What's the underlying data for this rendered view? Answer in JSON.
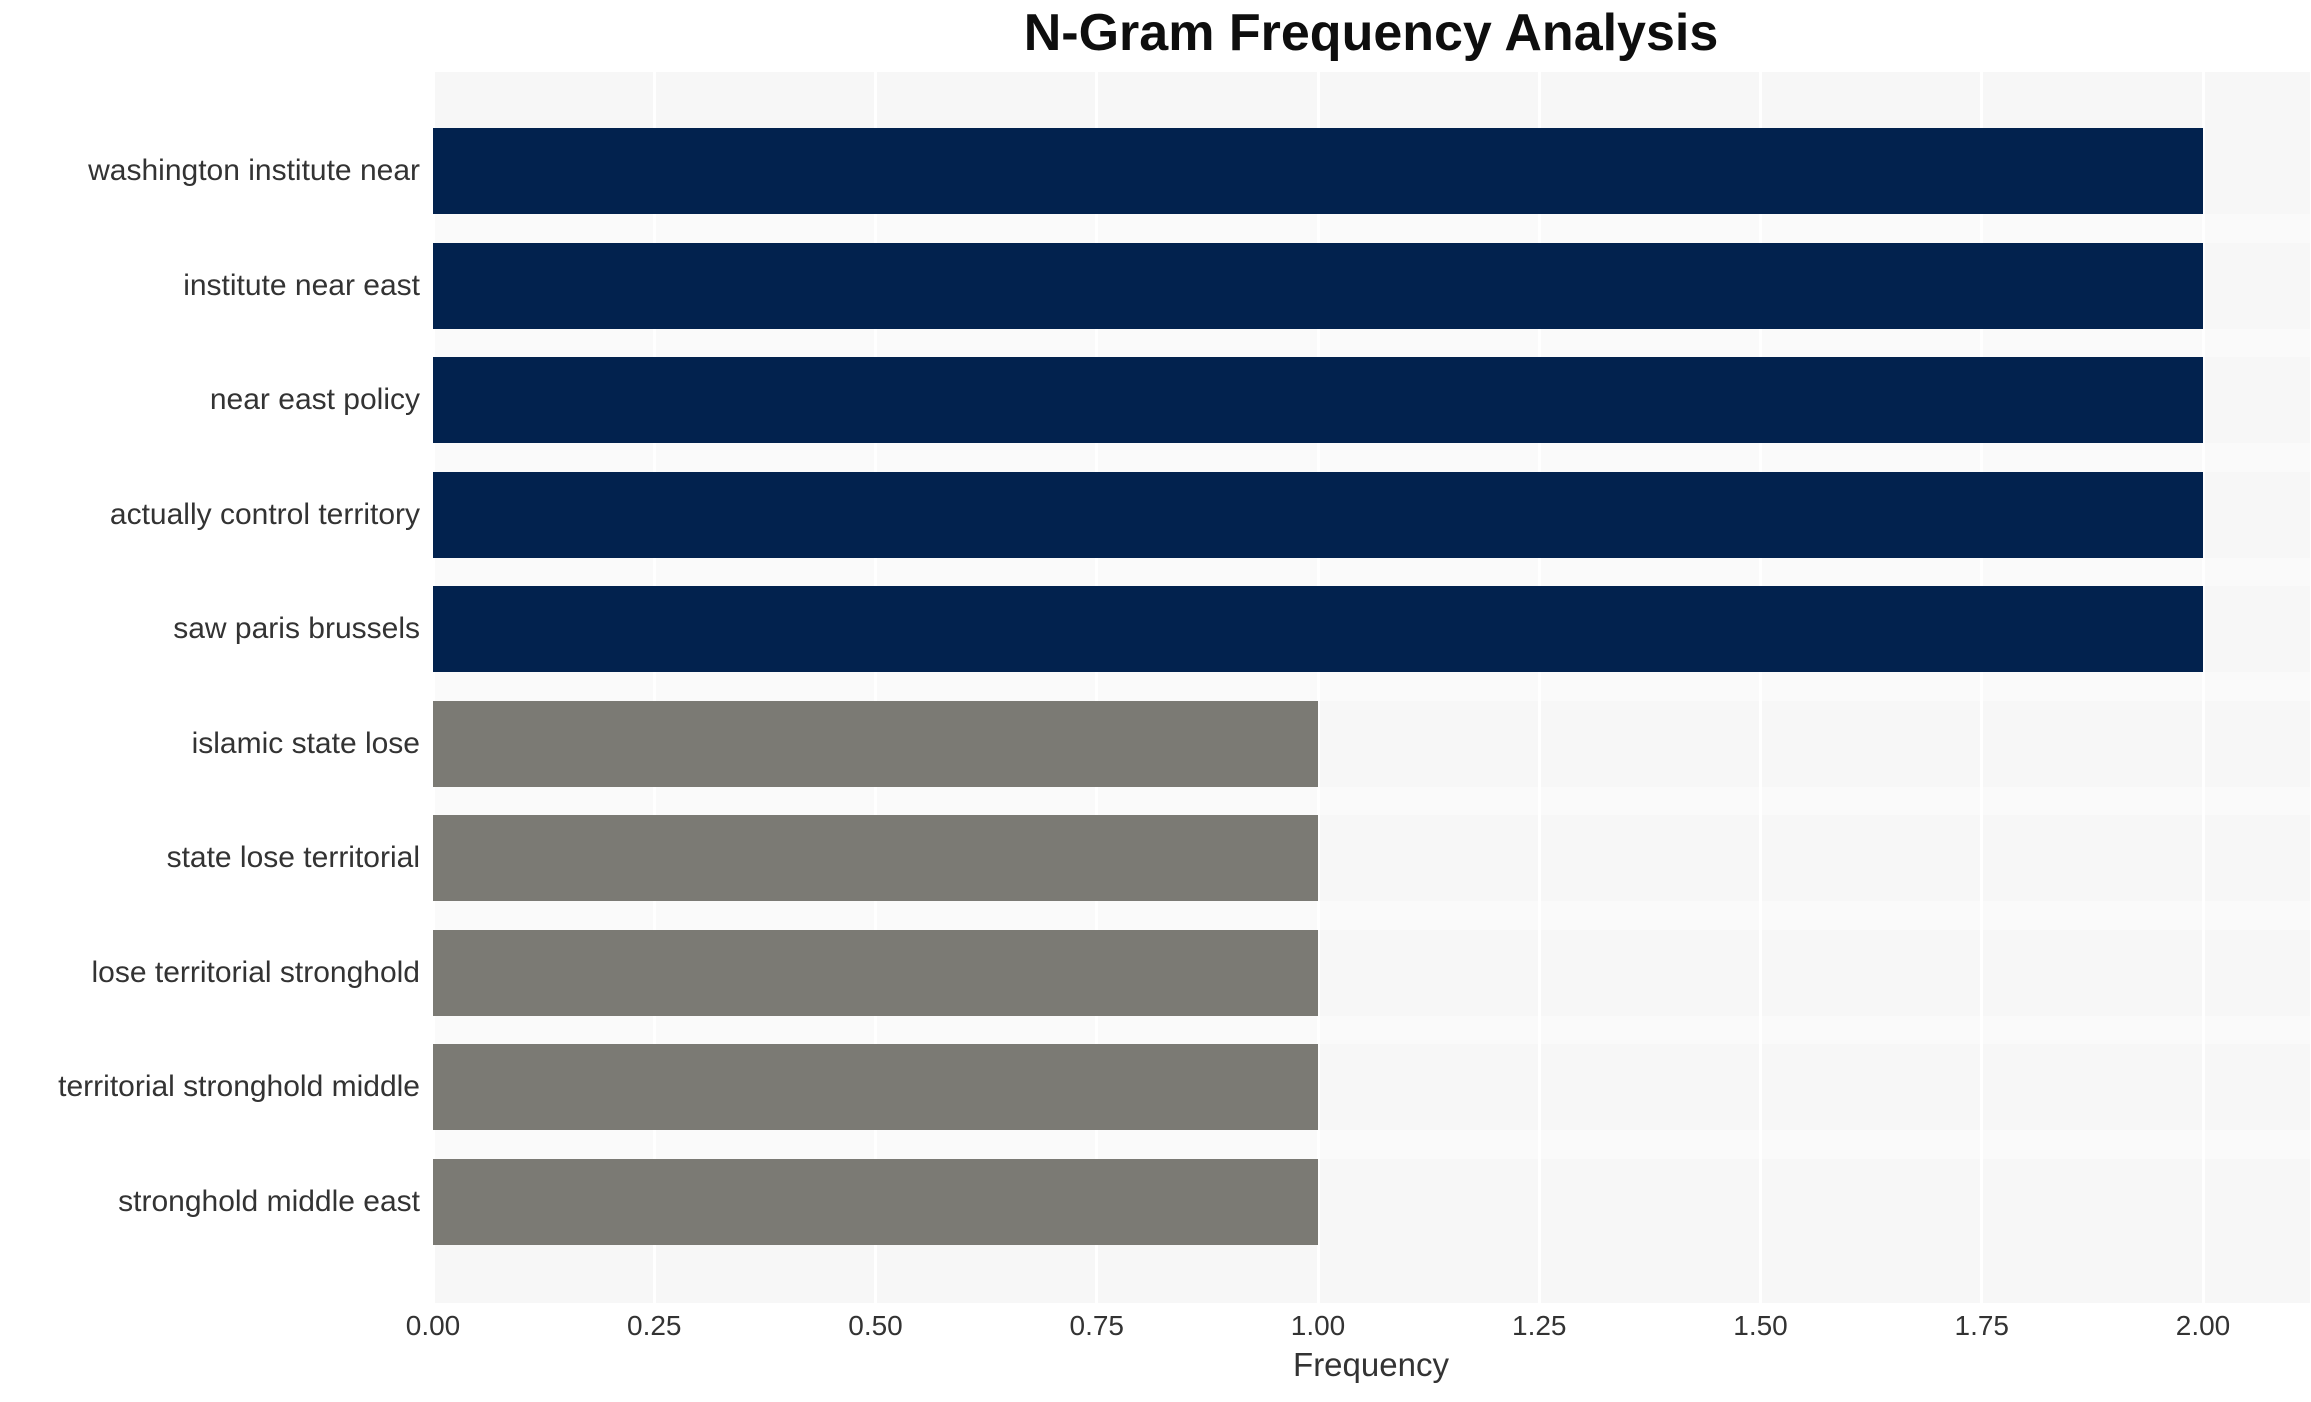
{
  "chart_data": {
    "type": "bar",
    "orientation": "horizontal",
    "title": "N-Gram Frequency Analysis",
    "xlabel": "Frequency",
    "ylabel": "",
    "categories": [
      "washington institute near",
      "institute near east",
      "near east policy",
      "actually control territory",
      "saw paris brussels",
      "islamic state lose",
      "state lose territorial",
      "lose territorial stronghold",
      "territorial stronghold middle",
      "stronghold middle east"
    ],
    "values": [
      2,
      2,
      2,
      2,
      2,
      1,
      1,
      1,
      1,
      1
    ],
    "bar_colors": [
      "#02224e",
      "#02224e",
      "#02224e",
      "#02224e",
      "#02224e",
      "#7b7a74",
      "#7b7a74",
      "#7b7a74",
      "#7b7a74",
      "#7b7a74"
    ],
    "x_ticks": [
      {
        "value": 0.0,
        "label": "0.00"
      },
      {
        "value": 0.25,
        "label": "0.25"
      },
      {
        "value": 0.5,
        "label": "0.50"
      },
      {
        "value": 0.75,
        "label": "0.75"
      },
      {
        "value": 1.0,
        "label": "1.00"
      },
      {
        "value": 1.25,
        "label": "1.25"
      },
      {
        "value": 1.5,
        "label": "1.50"
      },
      {
        "value": 1.75,
        "label": "1.75"
      },
      {
        "value": 2.0,
        "label": "2.00"
      }
    ],
    "xlim": [
      0,
      2.12
    ],
    "grid": {
      "vertical": true,
      "horizontal": false
    },
    "legend": "none"
  },
  "colors": {
    "bar_high_frequency": "#02224e",
    "bar_low_frequency": "#7b7a74",
    "panel_background": "#f7f7f7",
    "row_gap_stripe": "#fafafa",
    "gridline": "#ffffff",
    "figure_background": "#ffffff",
    "title_text": "#0e0e0e",
    "label_text": "#333333"
  }
}
